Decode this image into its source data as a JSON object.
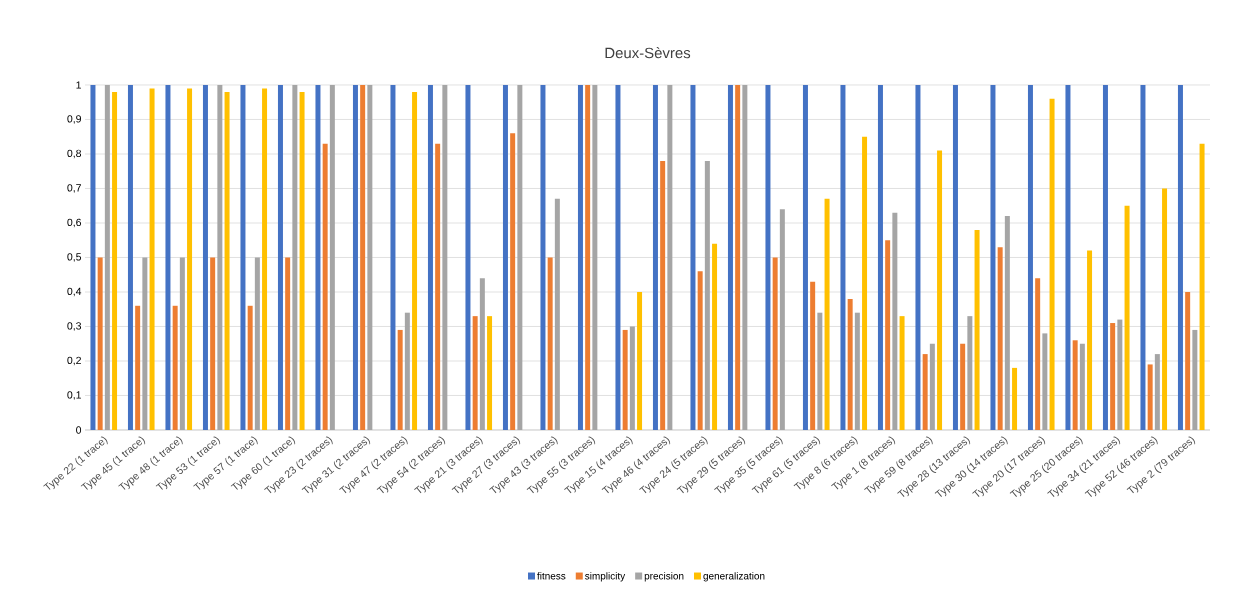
{
  "chart_data": {
    "type": "bar",
    "title": "Deux-Sèvres",
    "categories": [
      "Type 22 (1 trace)",
      "Type 45 (1 trace)",
      "Type 48 (1 trace)",
      "Type 53 (1 trace)",
      "Type 57 (1 trace)",
      "Type 60 (1 trace)",
      "Type 23 (2 traces)",
      "Type 31 (2 traces)",
      "Type 47 (2 traces)",
      "Type 54 (2 traces)",
      "Type 21 (3 traces)",
      "Type 27 (3 traces)",
      "Type 43 (3 traces)",
      "Type 55 (3 traces)",
      "Type 15 (4 traces)",
      "Type 46 (4 traces)",
      "Type 24 (5 traces)",
      "Type 29 (5 traces)",
      "Type 35 (5 traces)",
      "Type 61 (5 traces)",
      "Type 8 (6 traces)",
      "Type 1 (8 traces)",
      "Type 59 (8 traces)",
      "Type 28 (13 traces)",
      "Type 30 (14 traces)",
      "Type 20 (17 traces)",
      "Type 25 (20 traces)",
      "Type 34 (21 traces)",
      "Type 52 (46 traces)",
      "Type 2 (79 traces)"
    ],
    "series": [
      {
        "name": "fitness",
        "color": "#4472c4",
        "values": [
          1,
          1,
          1,
          1,
          1,
          1,
          1,
          1,
          1,
          1,
          1,
          1,
          1,
          1,
          1,
          1,
          1,
          1,
          1,
          1,
          1,
          1,
          1,
          1,
          1,
          1,
          1,
          1,
          1,
          1
        ]
      },
      {
        "name": "simplicity",
        "color": "#ed7d31",
        "values": [
          0.5,
          0.36,
          0.36,
          0.5,
          0.36,
          0.5,
          0.83,
          1,
          0.29,
          0.83,
          0.33,
          0.86,
          0.5,
          1,
          0.29,
          0.78,
          0.46,
          1,
          0.5,
          0.43,
          0.38,
          0.55,
          0.22,
          0.25,
          0.53,
          0.44,
          0.26,
          0.31,
          0.19,
          0.4
        ]
      },
      {
        "name": "precision",
        "color": "#a5a5a5",
        "values": [
          1,
          0.5,
          0.5,
          1,
          0.5,
          1,
          1,
          1,
          0.34,
          1,
          0.44,
          1,
          0.67,
          1,
          0.3,
          1,
          0.78,
          1,
          0.64,
          0.34,
          0.34,
          0.63,
          0.25,
          0.33,
          0.62,
          0.28,
          0.25,
          0.32,
          0.22,
          0.29
        ]
      },
      {
        "name": "generalization",
        "color": "#ffc000",
        "values": [
          0.98,
          0.99,
          0.99,
          0.98,
          0.99,
          0.98,
          0,
          0,
          0.98,
          0,
          0.33,
          0,
          0,
          0,
          0.4,
          0,
          0.54,
          0,
          0,
          0.67,
          0.85,
          0.33,
          0.81,
          0.58,
          0.18,
          0.96,
          0.52,
          0.65,
          0.7,
          0.83
        ]
      }
    ],
    "ylim": [
      0,
      1
    ],
    "yticks": [
      0,
      {
        "value": 0.1,
        "label": "0,1"
      },
      {
        "value": 0.2,
        "label": "0,2"
      },
      {
        "value": 0.3,
        "label": "0,3"
      },
      {
        "value": 0.4,
        "label": "0,4"
      },
      {
        "value": 0.5,
        "label": "0,5"
      },
      {
        "value": 0.6,
        "label": "0,6"
      },
      {
        "value": 0.7,
        "label": "0,7"
      },
      {
        "value": 0.8,
        "label": "0,8"
      },
      {
        "value": 0.9,
        "label": "0,9"
      },
      1
    ],
    "grid": "y",
    "legend": "bottom"
  }
}
